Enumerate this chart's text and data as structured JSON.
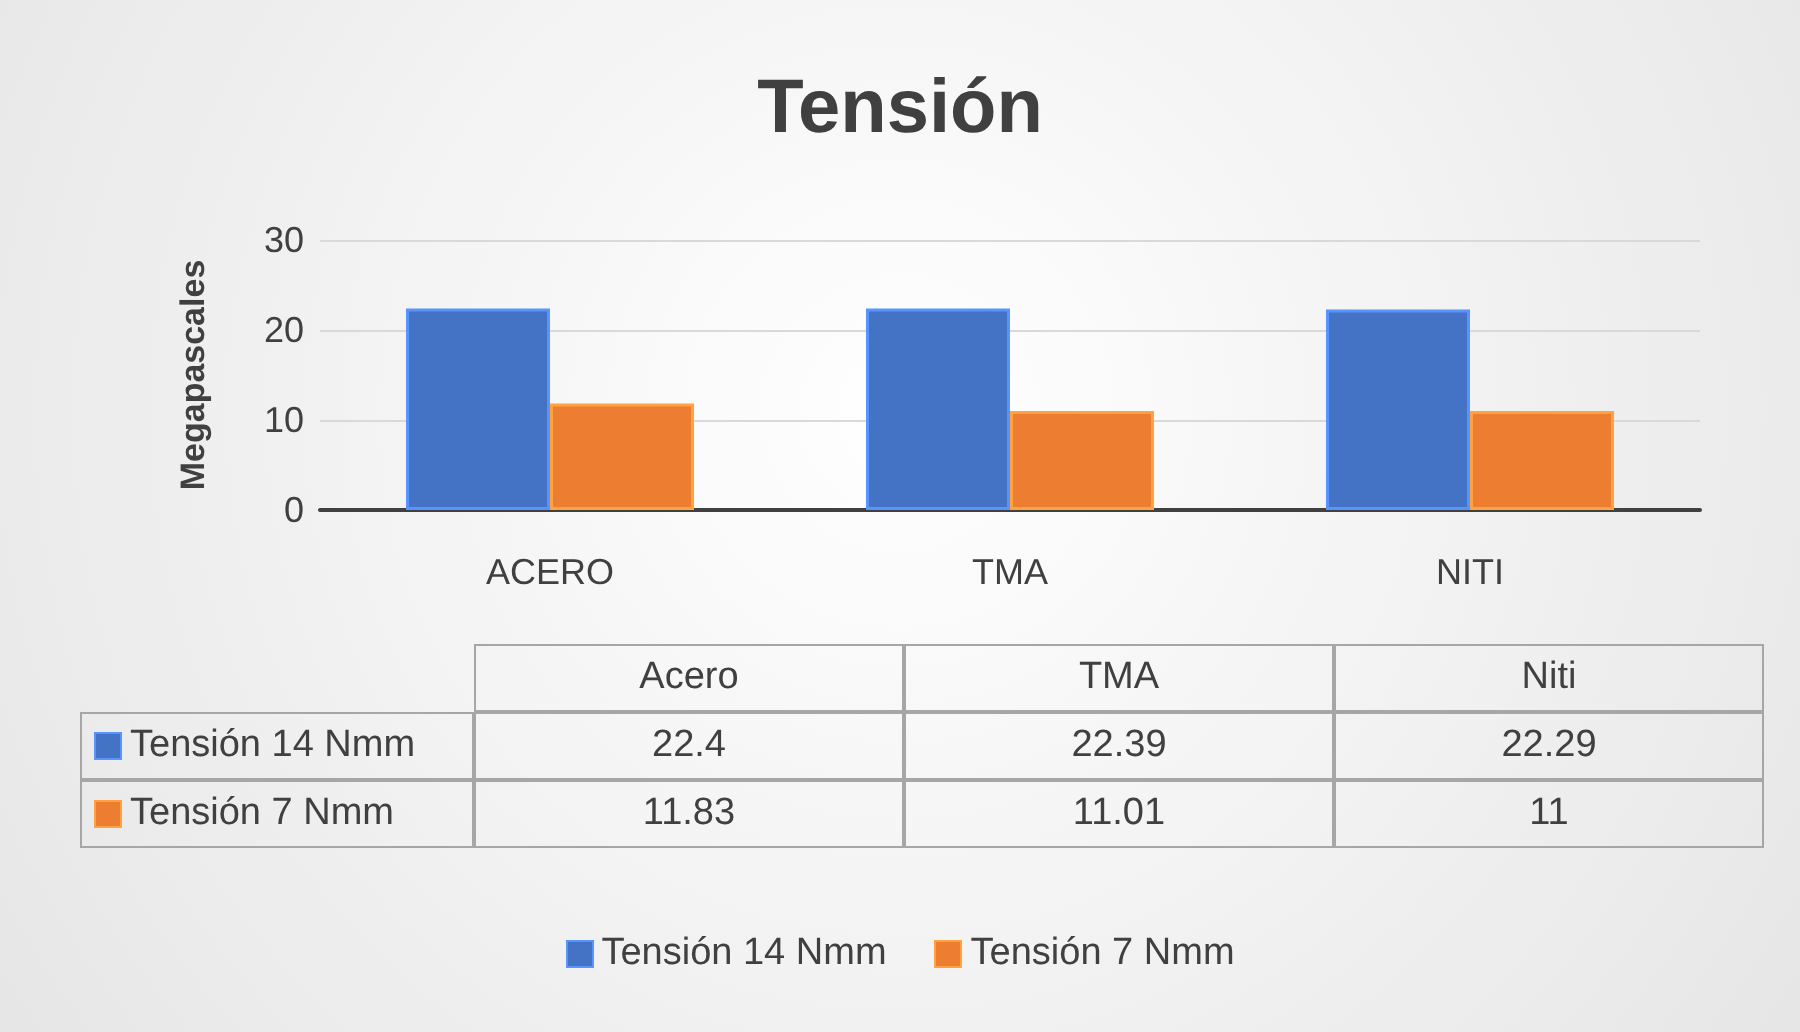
{
  "chart_data": {
    "type": "bar",
    "title": "Tensión",
    "ylabel": "Megapascales",
    "categories": [
      "ACERO",
      "TMA",
      "NITI"
    ],
    "series": [
      {
        "name": "Tensión 14 Nmm",
        "color": "#4472c4",
        "values": [
          22.4,
          22.39,
          22.29
        ]
      },
      {
        "name": "Tensión 7 Nmm",
        "color": "#ed7d31",
        "values": [
          11.83,
          11.01,
          11
        ]
      }
    ],
    "ylim": [
      0,
      30
    ],
    "yticks": [
      0,
      10,
      20,
      30
    ],
    "grid": "y",
    "legend": "bottom",
    "data_labels": true,
    "annotations": [
      "Acero",
      "TMA",
      "Niti"
    ]
  }
}
